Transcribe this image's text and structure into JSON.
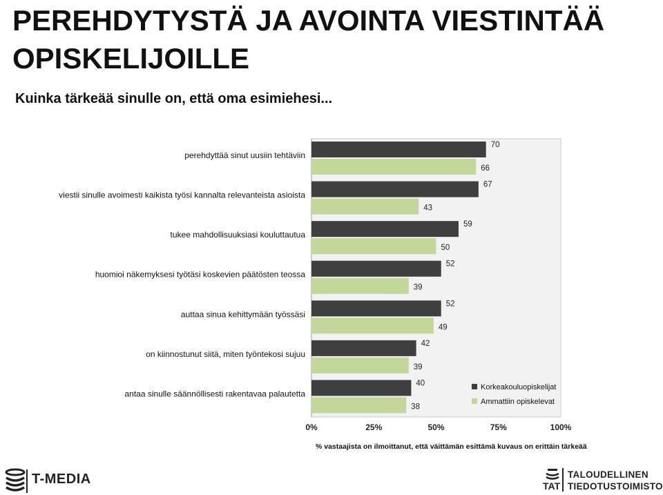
{
  "header": {
    "title": "PEREHDYTYSTÄ JA AVOINTA VIESTINTÄÄ OPISKELIJOILLE",
    "subtitle": "Kuinka tärkeää sinulle on, että oma esimiehesi..."
  },
  "chart_data": {
    "type": "bar",
    "orientation": "horizontal",
    "categories": [
      "perehdyttää sinut uusiin tehtäviin",
      "viestii sinulle avoimesti kaikista työsi kannalta relevanteista asioista",
      "tukee mahdollisuuksiasi kouluttautua",
      "huomioi näkemyksesi työtäsi koskevien päätösten teossa",
      "auttaa sinua kehittymään työssäsi",
      "on kiinnostunut siitä, miten työntekosi sujuu",
      "antaa sinulle säännöllisesti rakentavaa palautetta"
    ],
    "series": [
      {
        "name": "Korkeakouluopiskelijat",
        "color": "#3f3f3f",
        "values": [
          70,
          67,
          59,
          52,
          52,
          42,
          40
        ]
      },
      {
        "name": "Ammattiin opiskelevat",
        "color": "#c4d79b",
        "values": [
          66,
          43,
          50,
          39,
          49,
          39,
          38
        ]
      }
    ],
    "xlim": [
      0,
      100
    ],
    "xticks": [
      "0%",
      "25%",
      "50%",
      "75%",
      "100%"
    ],
    "xlabel": "% vastaajista on ilmoittanut, että väittämän esittämä kuvaus on erittäin tärkeää",
    "legend_position": "bottom-right",
    "plot_background": "#f2f2f2",
    "grid": false
  },
  "footer": {
    "left_logo": "T-MEDIA",
    "left_logo_icon": "t-media-stack-icon",
    "right_logo_abbr": "TAT",
    "right_logo_icon": "tat-stack-icon",
    "right_logo_line1": "TALOUDELLINEN",
    "right_logo_line2": "TIEDOTUSTOIMISTO"
  }
}
